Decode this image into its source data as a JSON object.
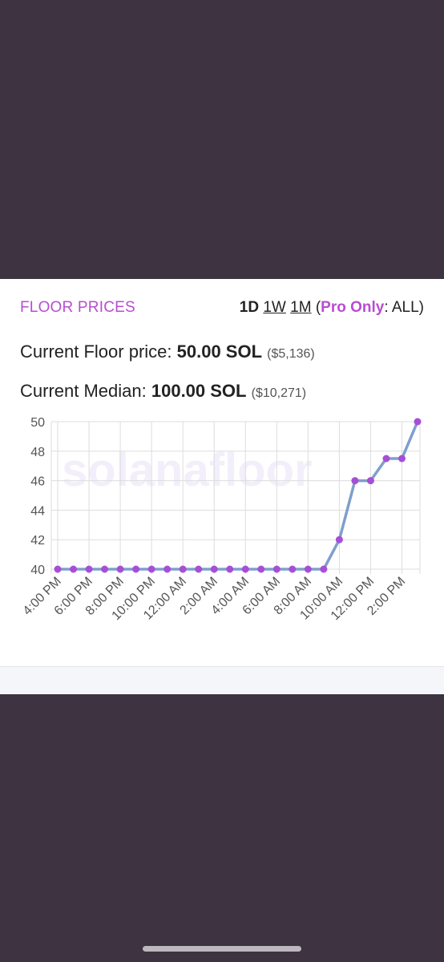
{
  "header": {
    "title": "FLOOR PRICES",
    "range_1d": "1D",
    "range_1w": "1W",
    "range_1m": "1M",
    "pro_open": "(",
    "pro_label": "Pro Only",
    "pro_rest": ": ALL)"
  },
  "stats": {
    "floor_label": "Current Floor price: ",
    "floor_value": "50.00 SOL",
    "floor_usd": "($5,136)",
    "median_label": "Current Median: ",
    "median_value": "100.00 SOL",
    "median_usd": "($10,271)"
  },
  "watermark": "solanafloor",
  "colors": {
    "accent": "#b84dd0",
    "line": "#7f9fcd",
    "point": "#a64fd6",
    "grid": "#dddddd",
    "background": "#3e3340"
  },
  "chart_data": {
    "type": "line",
    "title": "",
    "xlabel": "",
    "ylabel": "",
    "ylim": [
      40,
      50
    ],
    "yticks": [
      40,
      42,
      44,
      46,
      48,
      50
    ],
    "x_tick_labels": [
      "4:00 PM",
      "6:00 PM",
      "8:00 PM",
      "10:00 PM",
      "12:00 AM",
      "2:00 AM",
      "4:00 AM",
      "6:00 AM",
      "8:00 AM",
      "10:00 AM",
      "12:00 PM",
      "2:00 PM"
    ],
    "grid": true,
    "series": [
      {
        "values": [
          40,
          40,
          40,
          40,
          40,
          40,
          40,
          40,
          40,
          40,
          40,
          40,
          40,
          40,
          40,
          40,
          40,
          40,
          42,
          46,
          46,
          47.5,
          47.5,
          50
        ]
      }
    ]
  }
}
